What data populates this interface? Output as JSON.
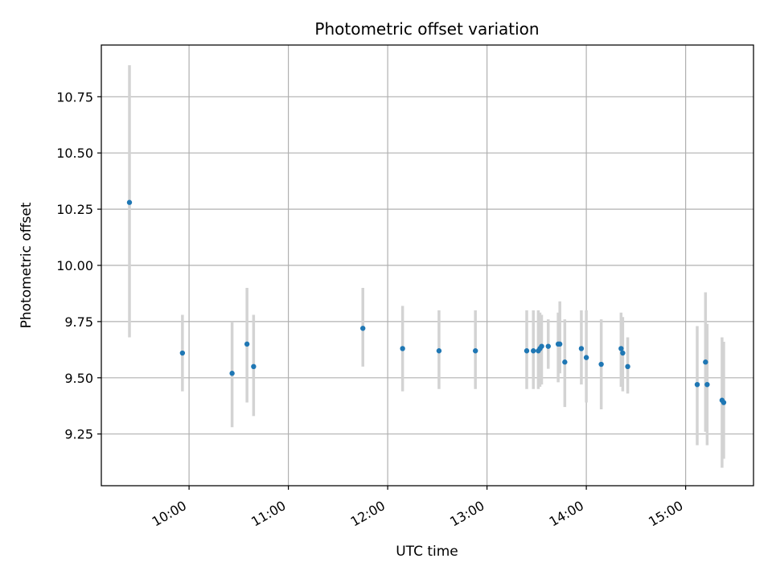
{
  "chart_data": {
    "type": "scatter",
    "title": "Photometric offset variation",
    "xlabel": "UTC time",
    "ylabel": "Photometric offset",
    "x_ticks": [
      "10:00",
      "11:00",
      "12:00",
      "13:00",
      "14:00",
      "15:00"
    ],
    "y_ticks": [
      "9.25",
      "9.50",
      "9.75",
      "10.00",
      "10.25",
      "10.50",
      "10.75"
    ],
    "xlim": [
      "09:07",
      "15:41"
    ],
    "ylim": [
      9.02,
      10.98
    ],
    "grid": true,
    "colors": {
      "point": "#1f77b4",
      "errorbar": "#d3d3d3",
      "grid": "#b0b0b0"
    },
    "series": [
      {
        "points": [
          {
            "x": "09:24",
            "y": 10.28,
            "ylow": 9.68,
            "yhigh": 10.89
          },
          {
            "x": "09:56",
            "y": 9.61,
            "ylow": 9.44,
            "yhigh": 9.78
          },
          {
            "x": "10:26",
            "y": 9.52,
            "ylow": 9.28,
            "yhigh": 9.75
          },
          {
            "x": "10:35",
            "y": 9.65,
            "ylow": 9.39,
            "yhigh": 9.9
          },
          {
            "x": "10:39",
            "y": 9.55,
            "ylow": 9.33,
            "yhigh": 9.78
          },
          {
            "x": "11:45",
            "y": 9.72,
            "ylow": 9.55,
            "yhigh": 9.9
          },
          {
            "x": "12:09",
            "y": 9.63,
            "ylow": 9.44,
            "yhigh": 9.82
          },
          {
            "x": "12:31",
            "y": 9.62,
            "ylow": 9.45,
            "yhigh": 9.8
          },
          {
            "x": "12:53",
            "y": 9.62,
            "ylow": 9.45,
            "yhigh": 9.8
          },
          {
            "x": "13:24",
            "y": 9.62,
            "ylow": 9.45,
            "yhigh": 9.8
          },
          {
            "x": "13:28",
            "y": 9.62,
            "ylow": 9.45,
            "yhigh": 9.8
          },
          {
            "x": "13:31",
            "y": 9.62,
            "ylow": 9.45,
            "yhigh": 9.8
          },
          {
            "x": "13:32",
            "y": 9.63,
            "ylow": 9.46,
            "yhigh": 9.79
          },
          {
            "x": "13:33",
            "y": 9.64,
            "ylow": 9.47,
            "yhigh": 9.78
          },
          {
            "x": "13:37",
            "y": 9.64,
            "ylow": 9.54,
            "yhigh": 9.76
          },
          {
            "x": "13:43",
            "y": 9.65,
            "ylow": 9.48,
            "yhigh": 9.79
          },
          {
            "x": "13:44",
            "y": 9.65,
            "ylow": 9.52,
            "yhigh": 9.84
          },
          {
            "x": "13:47",
            "y": 9.57,
            "ylow": 9.37,
            "yhigh": 9.76
          },
          {
            "x": "13:57",
            "y": 9.63,
            "ylow": 9.47,
            "yhigh": 9.8
          },
          {
            "x": "14:00",
            "y": 9.59,
            "ylow": 9.39,
            "yhigh": 9.8
          },
          {
            "x": "14:09",
            "y": 9.56,
            "ylow": 9.36,
            "yhigh": 9.76
          },
          {
            "x": "14:21",
            "y": 9.63,
            "ylow": 9.46,
            "yhigh": 9.79
          },
          {
            "x": "14:22",
            "y": 9.61,
            "ylow": 9.44,
            "yhigh": 9.77
          },
          {
            "x": "14:25",
            "y": 9.55,
            "ylow": 9.43,
            "yhigh": 9.68
          },
          {
            "x": "15:07",
            "y": 9.47,
            "ylow": 9.2,
            "yhigh": 9.73
          },
          {
            "x": "15:12",
            "y": 9.57,
            "ylow": 9.26,
            "yhigh": 9.88
          },
          {
            "x": "15:13",
            "y": 9.47,
            "ylow": 9.2,
            "yhigh": 9.74
          },
          {
            "x": "15:22",
            "y": 9.4,
            "ylow": 9.1,
            "yhigh": 9.68
          },
          {
            "x": "15:23",
            "y": 9.39,
            "ylow": 9.14,
            "yhigh": 9.66
          }
        ]
      }
    ]
  }
}
